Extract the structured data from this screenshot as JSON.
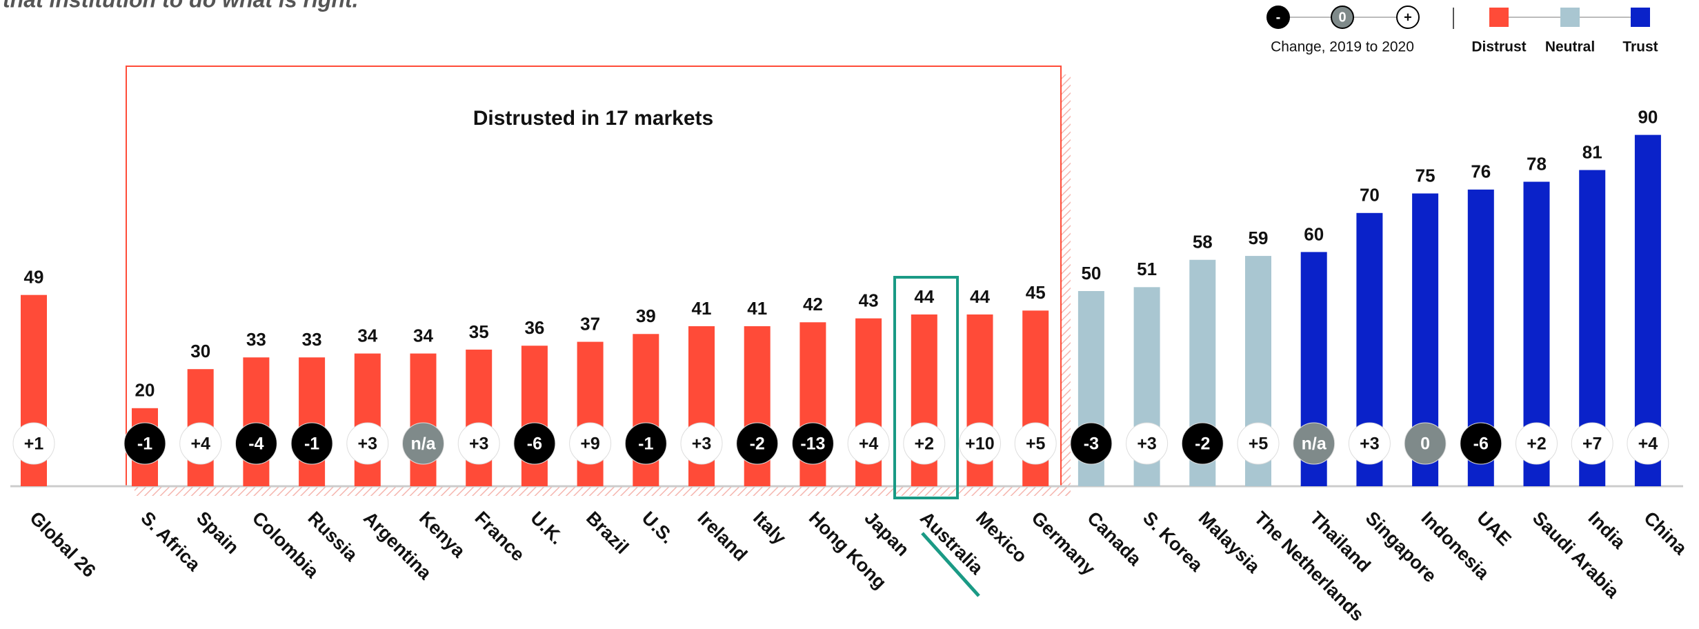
{
  "note": "that institution to do what is right.",
  "chart_data": {
    "type": "bar",
    "annotation": "Distrusted in 17 markets",
    "categories": [
      "Global 26",
      "S. Africa",
      "Spain",
      "Colombia",
      "Russia",
      "Argentina",
      "Kenya",
      "France",
      "U.K.",
      "Brazil",
      "U.S.",
      "Ireland",
      "Italy",
      "Hong Kong",
      "Japan",
      "Australia",
      "Mexico",
      "Germany",
      "Canada",
      "S. Korea",
      "Malaysia",
      "The Netherlands",
      "Thailand",
      "Singapore",
      "Indonesia",
      "UAE",
      "Saudi Arabia",
      "India",
      "China"
    ],
    "series": [
      {
        "name": "Distrust",
        "color": "#ff4b38",
        "values": [
          49,
          20,
          30,
          33,
          33,
          34,
          34,
          35,
          36,
          37,
          39,
          41,
          41,
          42,
          43,
          44,
          44,
          45,
          null,
          null,
          null,
          null,
          null,
          null,
          null,
          null,
          null,
          null,
          null
        ]
      },
      {
        "name": "Neutral",
        "color": "#a9c6d1",
        "values": [
          null,
          null,
          null,
          null,
          null,
          null,
          null,
          null,
          null,
          null,
          null,
          null,
          null,
          null,
          null,
          null,
          null,
          null,
          50,
          51,
          58,
          59,
          null,
          null,
          null,
          null,
          null,
          null,
          null
        ]
      },
      {
        "name": "Trust",
        "color": "#0a22c9",
        "values": [
          null,
          null,
          null,
          null,
          null,
          null,
          null,
          null,
          null,
          null,
          null,
          null,
          null,
          null,
          null,
          null,
          null,
          null,
          null,
          null,
          null,
          null,
          60,
          70,
          75,
          76,
          78,
          81,
          90
        ]
      }
    ],
    "changes": [
      "+1",
      "-1",
      "+4",
      "-4",
      "-1",
      "+3",
      "n/a",
      "+3",
      "-6",
      "+9",
      "-1",
      "+3",
      "-2",
      "-13",
      "+4",
      "+2",
      "+10",
      "+5",
      "-3",
      "+3",
      "-2",
      "+5",
      "n/a",
      "+3",
      "0",
      "-6",
      "+2",
      "+7",
      "+4"
    ],
    "change_legend": {
      "title": "Change, 2019 to 2020",
      "symbols": [
        "-",
        "0",
        "+"
      ]
    }
  }
}
